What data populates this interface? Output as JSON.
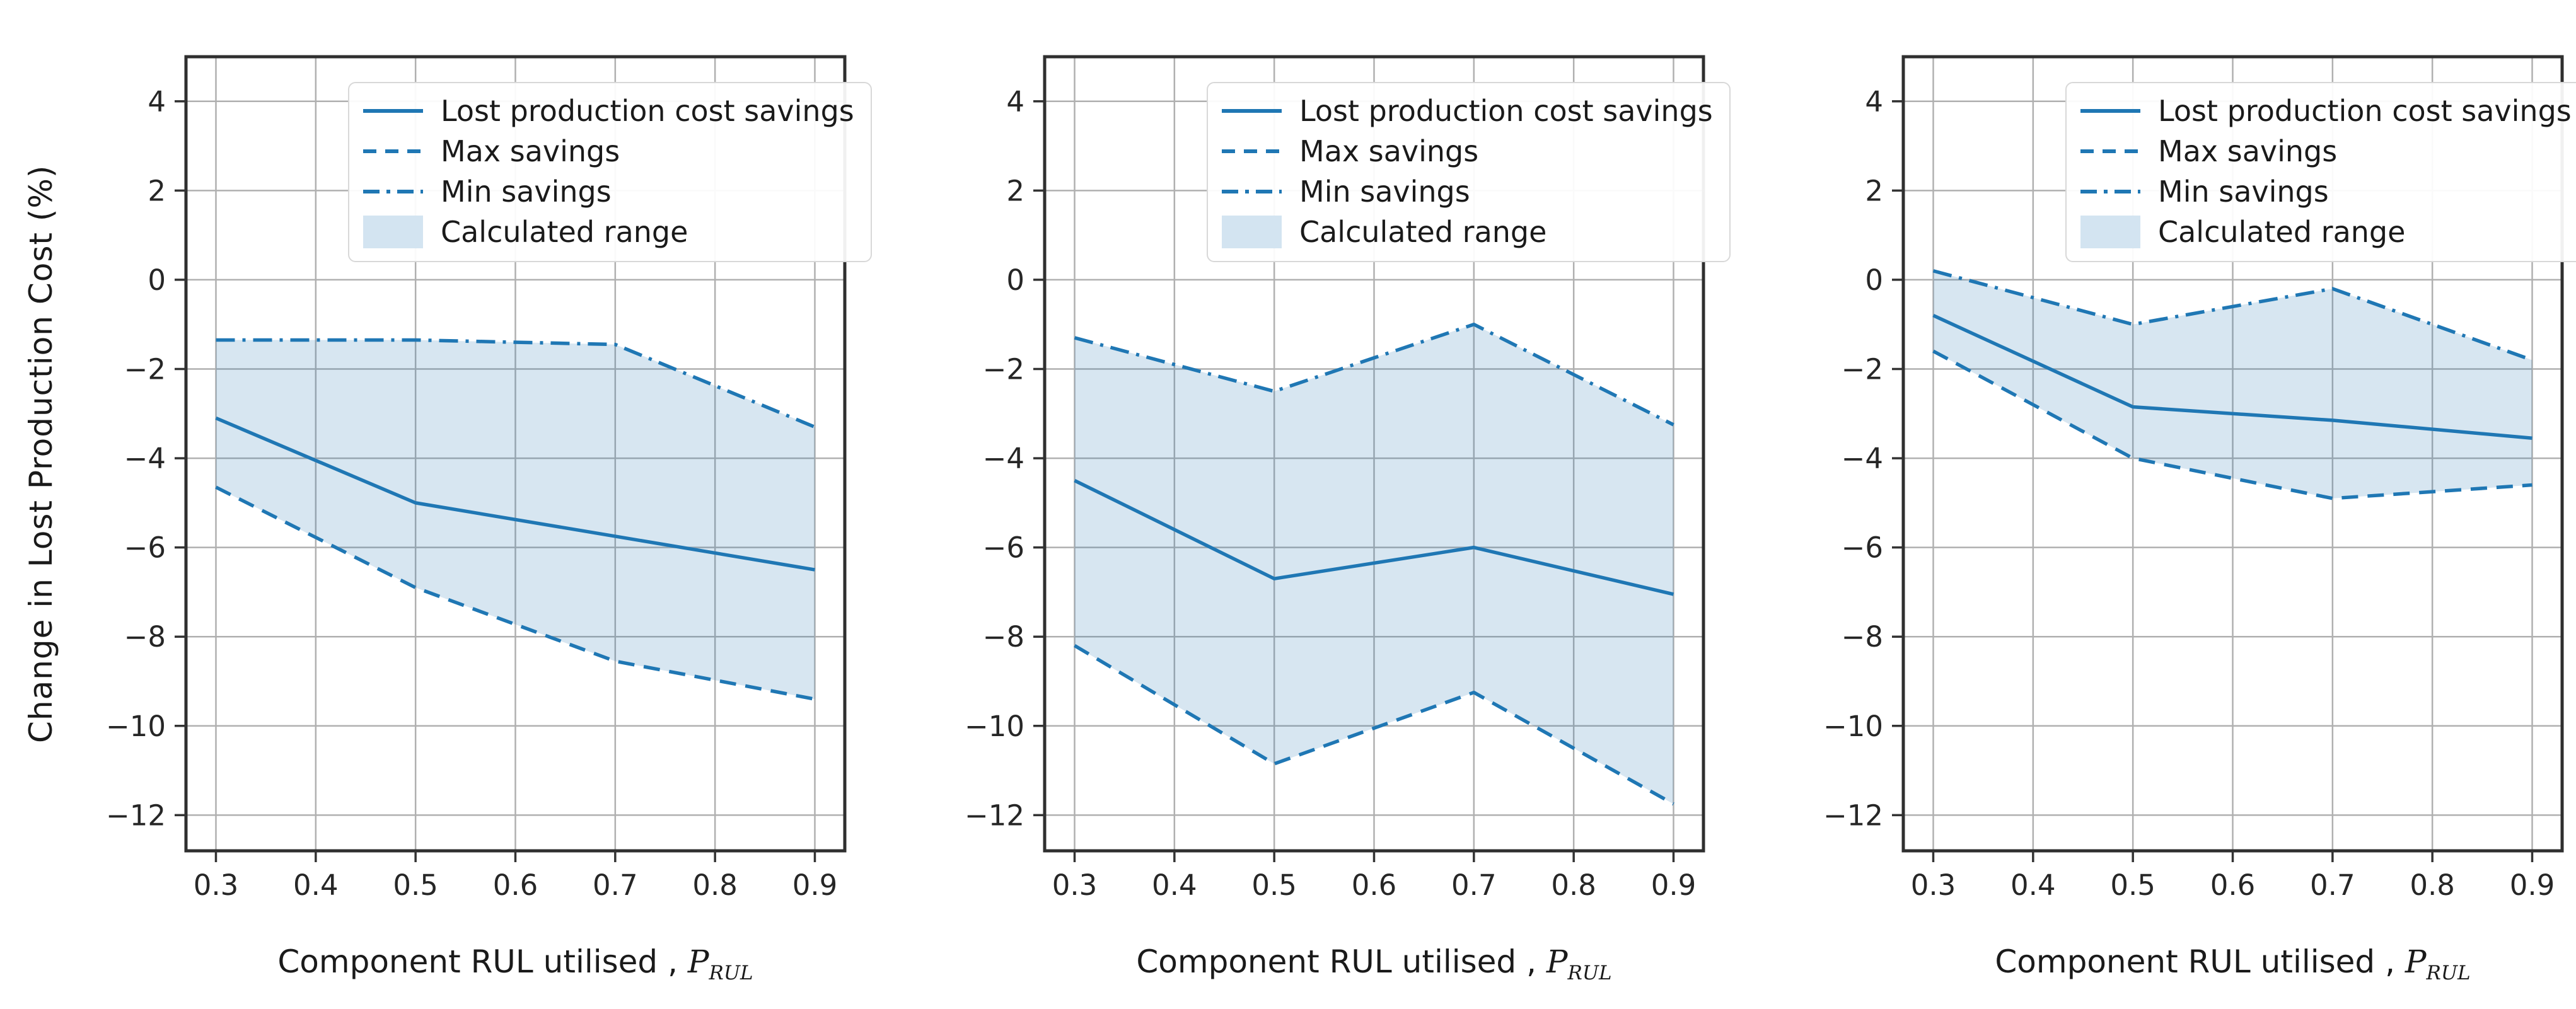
{
  "figure": {
    "ylabel": "Change in Lost Production Cost (%)",
    "xlabel_prefix": "Component RUL utilised ,",
    "xlabel_symbol": "P",
    "xlabel_subscript": "RUL"
  },
  "legend": {
    "location": "upper right",
    "items": [
      "Lost production cost savings",
      "Max savings",
      "Min savings",
      "Calculated range"
    ]
  },
  "style": {
    "line_color": "#1f77b4",
    "fill_color_translucent": "rgba(31,119,180,0.18)",
    "fill_color_solid": "#d3e4f1",
    "grid_color": "#b0b0b0",
    "spine_color": "#2f2f2f",
    "tick_color": "#333333",
    "text_color": "#262626"
  },
  "axes": {
    "xlim": [
      0.27,
      0.93
    ],
    "ylim": [
      -12.8,
      5.0
    ],
    "xticks": [
      0.3,
      0.4,
      0.5,
      0.6,
      0.7,
      0.8,
      0.9
    ],
    "xtick_labels": [
      "0.3",
      "0.4",
      "0.5",
      "0.6",
      "0.7",
      "0.8",
      "0.9"
    ],
    "yticks": [
      4,
      2,
      0,
      -2,
      -4,
      -6,
      -8,
      -10,
      -12
    ],
    "ytick_labels": [
      "4",
      "2",
      "0",
      "−2",
      "−4",
      "−6",
      "−8",
      "−10",
      "−12"
    ],
    "grid": true
  },
  "chart_data": [
    {
      "type": "line",
      "title": "",
      "xlabel": "Component RUL utilised, P_RUL",
      "ylabel": "Change in Lost Production Cost (%)",
      "xlim": [
        0.27,
        0.93
      ],
      "ylim": [
        -12.8,
        5.0
      ],
      "x": [
        0.3,
        0.5,
        0.7,
        0.9
      ],
      "series": [
        {
          "name": "Lost production cost savings",
          "style": "solid",
          "values": [
            -3.1,
            -5.0,
            -5.75,
            -6.5
          ]
        },
        {
          "name": "Max savings",
          "style": "dashed",
          "values": [
            -4.65,
            -6.9,
            -8.55,
            -9.4
          ]
        },
        {
          "name": "Min savings",
          "style": "dashdot",
          "values": [
            -1.35,
            -1.35,
            -1.45,
            -3.3
          ]
        }
      ],
      "fill_between": {
        "label": "Calculated range",
        "upper": "Min savings",
        "lower": "Max savings"
      }
    },
    {
      "type": "line",
      "title": "",
      "xlabel": "Component RUL utilised, P_RUL",
      "ylabel": "Change in Lost Production Cost (%)",
      "xlim": [
        0.27,
        0.93
      ],
      "ylim": [
        -12.8,
        5.0
      ],
      "x": [
        0.3,
        0.5,
        0.7,
        0.9
      ],
      "series": [
        {
          "name": "Lost production cost savings",
          "style": "solid",
          "values": [
            -4.5,
            -6.7,
            -6.0,
            -7.05
          ]
        },
        {
          "name": "Max savings",
          "style": "dashed",
          "values": [
            -8.2,
            -10.85,
            -9.25,
            -11.75
          ]
        },
        {
          "name": "Min savings",
          "style": "dashdot",
          "values": [
            -1.3,
            -2.5,
            -1.0,
            -3.25
          ]
        }
      ],
      "fill_between": {
        "label": "Calculated range",
        "upper": "Min savings",
        "lower": "Max savings"
      }
    },
    {
      "type": "line",
      "title": "",
      "xlabel": "Component RUL utilised, P_RUL",
      "ylabel": "Change in Lost Production Cost (%)",
      "xlim": [
        0.27,
        0.93
      ],
      "ylim": [
        -12.8,
        5.0
      ],
      "x": [
        0.3,
        0.5,
        0.7,
        0.9
      ],
      "series": [
        {
          "name": "Lost production cost savings",
          "style": "solid",
          "values": [
            -0.8,
            -2.85,
            -3.15,
            -3.55
          ]
        },
        {
          "name": "Max savings",
          "style": "dashed",
          "values": [
            -1.6,
            -4.0,
            -4.9,
            -4.6
          ]
        },
        {
          "name": "Min savings",
          "style": "dashdot",
          "values": [
            0.2,
            -1.0,
            -0.2,
            -1.8
          ]
        }
      ],
      "fill_between": {
        "label": "Calculated range",
        "upper": "Min savings",
        "lower": "Max savings"
      }
    }
  ]
}
